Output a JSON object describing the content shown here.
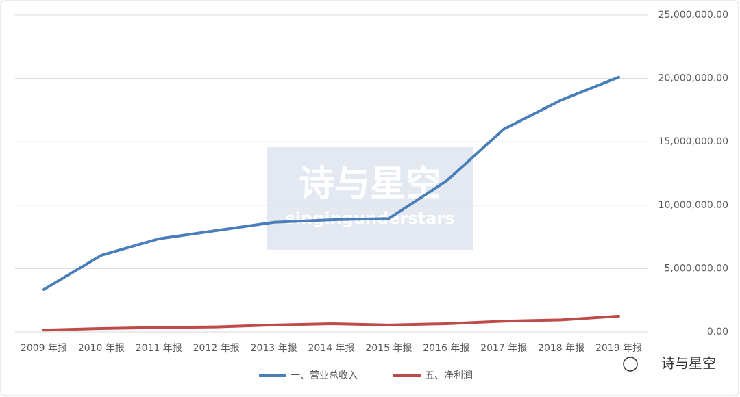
{
  "chart_data": {
    "type": "line",
    "categories": [
      "2009 年报",
      "2010 年报",
      "2011 年报",
      "2012 年报",
      "2013 年报",
      "2014 年报",
      "2015 年报",
      "2016 年报",
      "2017 年报",
      "2018 年报",
      "2019 年报"
    ],
    "series": [
      {
        "name": "一、营业总收入",
        "color": "#4a7ebb",
        "values": [
          3350000,
          6050000,
          7350000,
          8000000,
          8650000,
          8850000,
          8950000,
          11900000,
          16000000,
          18300000,
          20100000
        ]
      },
      {
        "name": "五、净利润",
        "color": "#be4b48",
        "values": [
          150000,
          270000,
          350000,
          400000,
          550000,
          650000,
          550000,
          650000,
          850000,
          950000,
          1250000
        ]
      }
    ],
    "ylim": [
      0,
      25000000
    ],
    "yticks": [
      {
        "value": 0,
        "label": "0.00"
      },
      {
        "value": 5000000,
        "label": "5,000,000.00"
      },
      {
        "value": 10000000,
        "label": "10,000,000.00"
      },
      {
        "value": 15000000,
        "label": "15,000,000.00"
      },
      {
        "value": 20000000,
        "label": "20,000,000.00"
      },
      {
        "value": 25000000,
        "label": "25,000,000.00"
      }
    ],
    "grid": true,
    "legend": "bottom",
    "annotations": [
      "诗与星空",
      "singingunderstars",
      "诗与星空"
    ]
  }
}
